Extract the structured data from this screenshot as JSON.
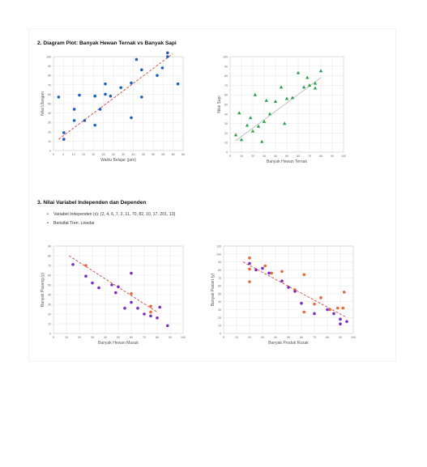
{
  "section2": {
    "title": "2. Diagram Plot: Banyak Hewan Ternak vs Banyak Sapi"
  },
  "section3": {
    "title": "3. Nilai Variabel Independen dan Dependen",
    "bullets": [
      "Variabel Independen (x): {2, 4, 6, 7, 2, 11, 70, 82, 10, 17, 201, 13}",
      "Berisifat Tren: Linedar"
    ]
  },
  "chart_data": [
    {
      "type": "scatter",
      "xlabel": "Waktu Belajar (jam)",
      "ylabel": "Nilai Ulangan",
      "xlim": [
        0,
        25
      ],
      "ylim": [
        0,
        100
      ],
      "xticks": [
        "0",
        "5",
        "10",
        "15",
        "20",
        "25",
        "30",
        "35",
        "40",
        "45",
        "50",
        "55",
        "60",
        "65"
      ],
      "yticks": [
        "0",
        "10",
        "20",
        "30",
        "40",
        "50",
        "60",
        "70",
        "80",
        "90",
        "100"
      ],
      "color": "#1f5fbf",
      "trend_color": "#d04a3a",
      "points": [
        [
          1,
          57
        ],
        [
          2,
          12
        ],
        [
          2,
          19
        ],
        [
          4,
          32
        ],
        [
          4,
          44
        ],
        [
          5,
          59
        ],
        [
          6,
          32
        ],
        [
          8,
          58
        ],
        [
          8,
          27
        ],
        [
          9,
          44
        ],
        [
          10,
          71
        ],
        [
          10,
          60
        ],
        [
          11,
          58
        ],
        [
          13,
          67
        ],
        [
          15,
          72
        ],
        [
          15,
          35
        ],
        [
          16,
          97
        ],
        [
          17,
          57
        ],
        [
          17,
          86
        ],
        [
          20,
          80
        ],
        [
          22,
          104
        ],
        [
          22,
          100
        ],
        [
          24,
          71
        ],
        [
          21,
          88
        ]
      ],
      "trend": [
        [
          1,
          12
        ],
        [
          23,
          103
        ]
      ]
    },
    {
      "type": "scatter",
      "xlabel": "Banyak Hewan Ternak",
      "ylabel": "Nilai Sapi",
      "xlim": [
        0,
        100
      ],
      "ylim": [
        0,
        100
      ],
      "xticks": [
        "0",
        "10",
        "20",
        "30",
        "40",
        "50",
        "60",
        "70",
        "80",
        "90",
        "100"
      ],
      "yticks": [
        "0",
        "10",
        "20",
        "30",
        "40",
        "50",
        "60",
        "70",
        "80",
        "90",
        "100"
      ],
      "color": "#2e9e4a",
      "trend_color": "#bdbdbd",
      "points": [
        [
          5,
          18
        ],
        [
          8,
          41
        ],
        [
          10,
          13
        ],
        [
          15,
          28
        ],
        [
          18,
          36
        ],
        [
          20,
          22
        ],
        [
          22,
          60
        ],
        [
          25,
          27
        ],
        [
          28,
          11
        ],
        [
          30,
          32
        ],
        [
          32,
          54
        ],
        [
          35,
          40
        ],
        [
          40,
          53
        ],
        [
          45,
          68
        ],
        [
          48,
          30
        ],
        [
          50,
          56
        ],
        [
          55,
          57
        ],
        [
          60,
          83
        ],
        [
          65,
          68
        ],
        [
          68,
          78
        ],
        [
          70,
          70
        ],
        [
          75,
          67
        ],
        [
          75,
          72
        ],
        [
          80,
          85
        ]
      ],
      "trend": [
        [
          5,
          12
        ],
        [
          80,
          78
        ]
      ]
    },
    {
      "type": "scatter",
      "xlabel": "Banyak Hewan Masuk",
      "ylabel": "Banyak Pasang (y)",
      "xlim": [
        0,
        100
      ],
      "ylim": [
        0,
        90
      ],
      "xticks": [
        "0",
        "10",
        "20",
        "30",
        "40",
        "50",
        "60",
        "70",
        "80",
        "90",
        "100"
      ],
      "yticks": [
        "0",
        "10",
        "20",
        "30",
        "40",
        "50",
        "60",
        "70",
        "80",
        "90"
      ],
      "trend_color": "#d04a3a",
      "series": [
        {
          "color": "#e8683a",
          "points": [
            [
              25,
              70
            ],
            [
              60,
              41
            ],
            [
              75,
              28
            ],
            [
              75,
              22
            ]
          ]
        },
        {
          "color": "#7b2fbf",
          "points": [
            [
              15,
              71
            ],
            [
              25,
              59
            ],
            [
              30,
              52
            ],
            [
              35,
              47
            ],
            [
              45,
              50
            ],
            [
              48,
              42
            ],
            [
              50,
              48
            ],
            [
              55,
              26
            ],
            [
              60,
              32
            ],
            [
              60,
              62
            ],
            [
              65,
              26
            ],
            [
              70,
              20
            ],
            [
              75,
              18
            ],
            [
              80,
              16
            ],
            [
              82,
              27
            ],
            [
              88,
              8
            ]
          ]
        }
      ],
      "trend": [
        [
          12,
          80
        ],
        [
          80,
          22
        ]
      ]
    },
    {
      "type": "scatter",
      "xlabel": "Banyak Produk Rusak",
      "ylabel": "Banyak Pasien (y)",
      "xlim": [
        0,
        100
      ],
      "ylim": [
        0,
        110
      ],
      "xticks": [
        "0",
        "10",
        "20",
        "30",
        "40",
        "50",
        "60",
        "70",
        "80",
        "90",
        "100"
      ],
      "yticks": [
        "0",
        "10",
        "20",
        "30",
        "40",
        "50",
        "60",
        "70",
        "80",
        "90",
        "100",
        "110"
      ],
      "trend_color": "#d04a3a",
      "series": [
        {
          "color": "#e8683a",
          "points": [
            [
              20,
              95
            ],
            [
              20,
              81
            ],
            [
              20,
              65
            ],
            [
              32,
              85
            ],
            [
              37,
              76
            ],
            [
              45,
              78
            ],
            [
              55,
              55
            ],
            [
              62,
              74
            ],
            [
              62,
              27
            ],
            [
              70,
              37
            ],
            [
              75,
              45
            ],
            [
              82,
              30
            ],
            [
              88,
              32
            ],
            [
              92,
              32
            ],
            [
              93,
              52
            ]
          ]
        },
        {
          "color": "#7b2fbf",
          "points": [
            [
              20,
              88
            ],
            [
              25,
              80
            ],
            [
              30,
              82
            ],
            [
              35,
              76
            ],
            [
              45,
              66
            ],
            [
              50,
              58
            ],
            [
              55,
              53
            ],
            [
              60,
              38
            ],
            [
              70,
              25
            ],
            [
              80,
              30
            ],
            [
              85,
              25
            ],
            [
              90,
              18
            ],
            [
              95,
              15
            ],
            [
              90,
              12
            ]
          ]
        }
      ],
      "trend": [
        [
          15,
          90
        ],
        [
          95,
          20
        ]
      ]
    }
  ]
}
